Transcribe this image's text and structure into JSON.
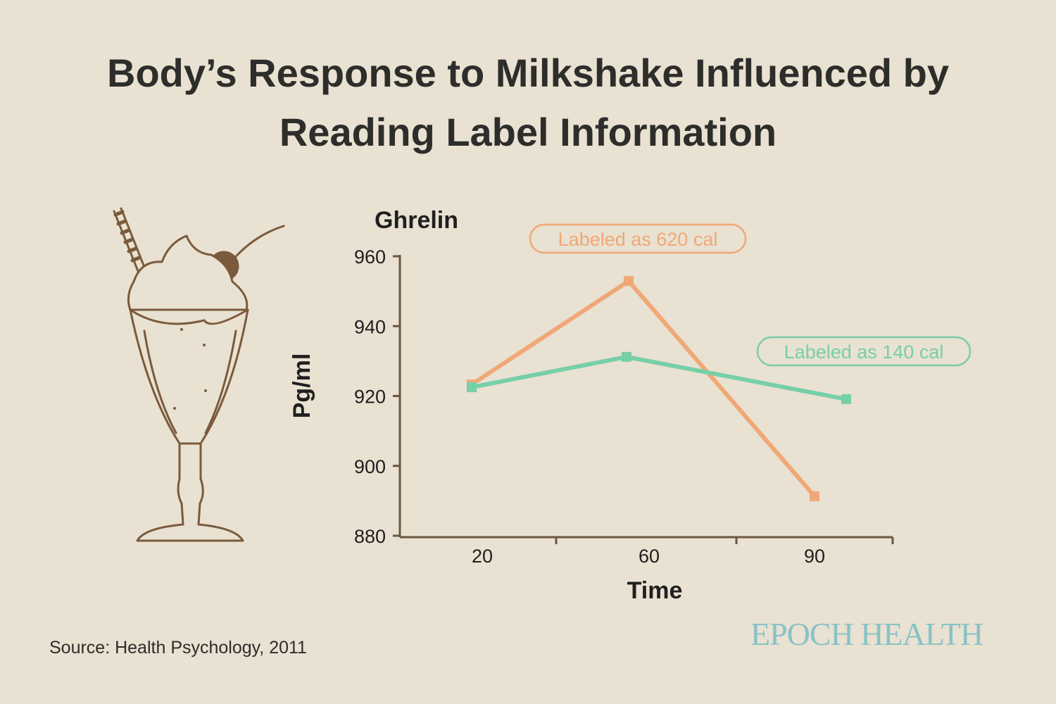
{
  "title_line1": "Body’s Response to Milkshake Influenced by",
  "title_line2": "Reading Label Information",
  "source": "Source: Health Psychology, 2011",
  "logo": "EPOCH HEALTH",
  "colors": {
    "orange": "#f0a877",
    "green": "#77cfa8",
    "axis": "#6b5640",
    "logo": "#86c3c6",
    "background": "#e9e1d1"
  },
  "chart_data": {
    "type": "line",
    "title": "Ghrelin",
    "xlabel": "Time",
    "ylabel": "Pg/ml",
    "categories": [
      "20",
      "60",
      "90"
    ],
    "yticks": [
      "960",
      "940",
      "920",
      "900",
      "880"
    ],
    "ylim": [
      880,
      960
    ],
    "grid": false,
    "series": [
      {
        "name": "Labeled as 620 cal",
        "color": "#f0a877",
        "values": [
          923.3,
          952.9,
          891.3
        ]
      },
      {
        "name": "Labeled as 140 cal",
        "color": "#77cfa8",
        "values": [
          922.5,
          931.2,
          919.1
        ]
      }
    ]
  }
}
